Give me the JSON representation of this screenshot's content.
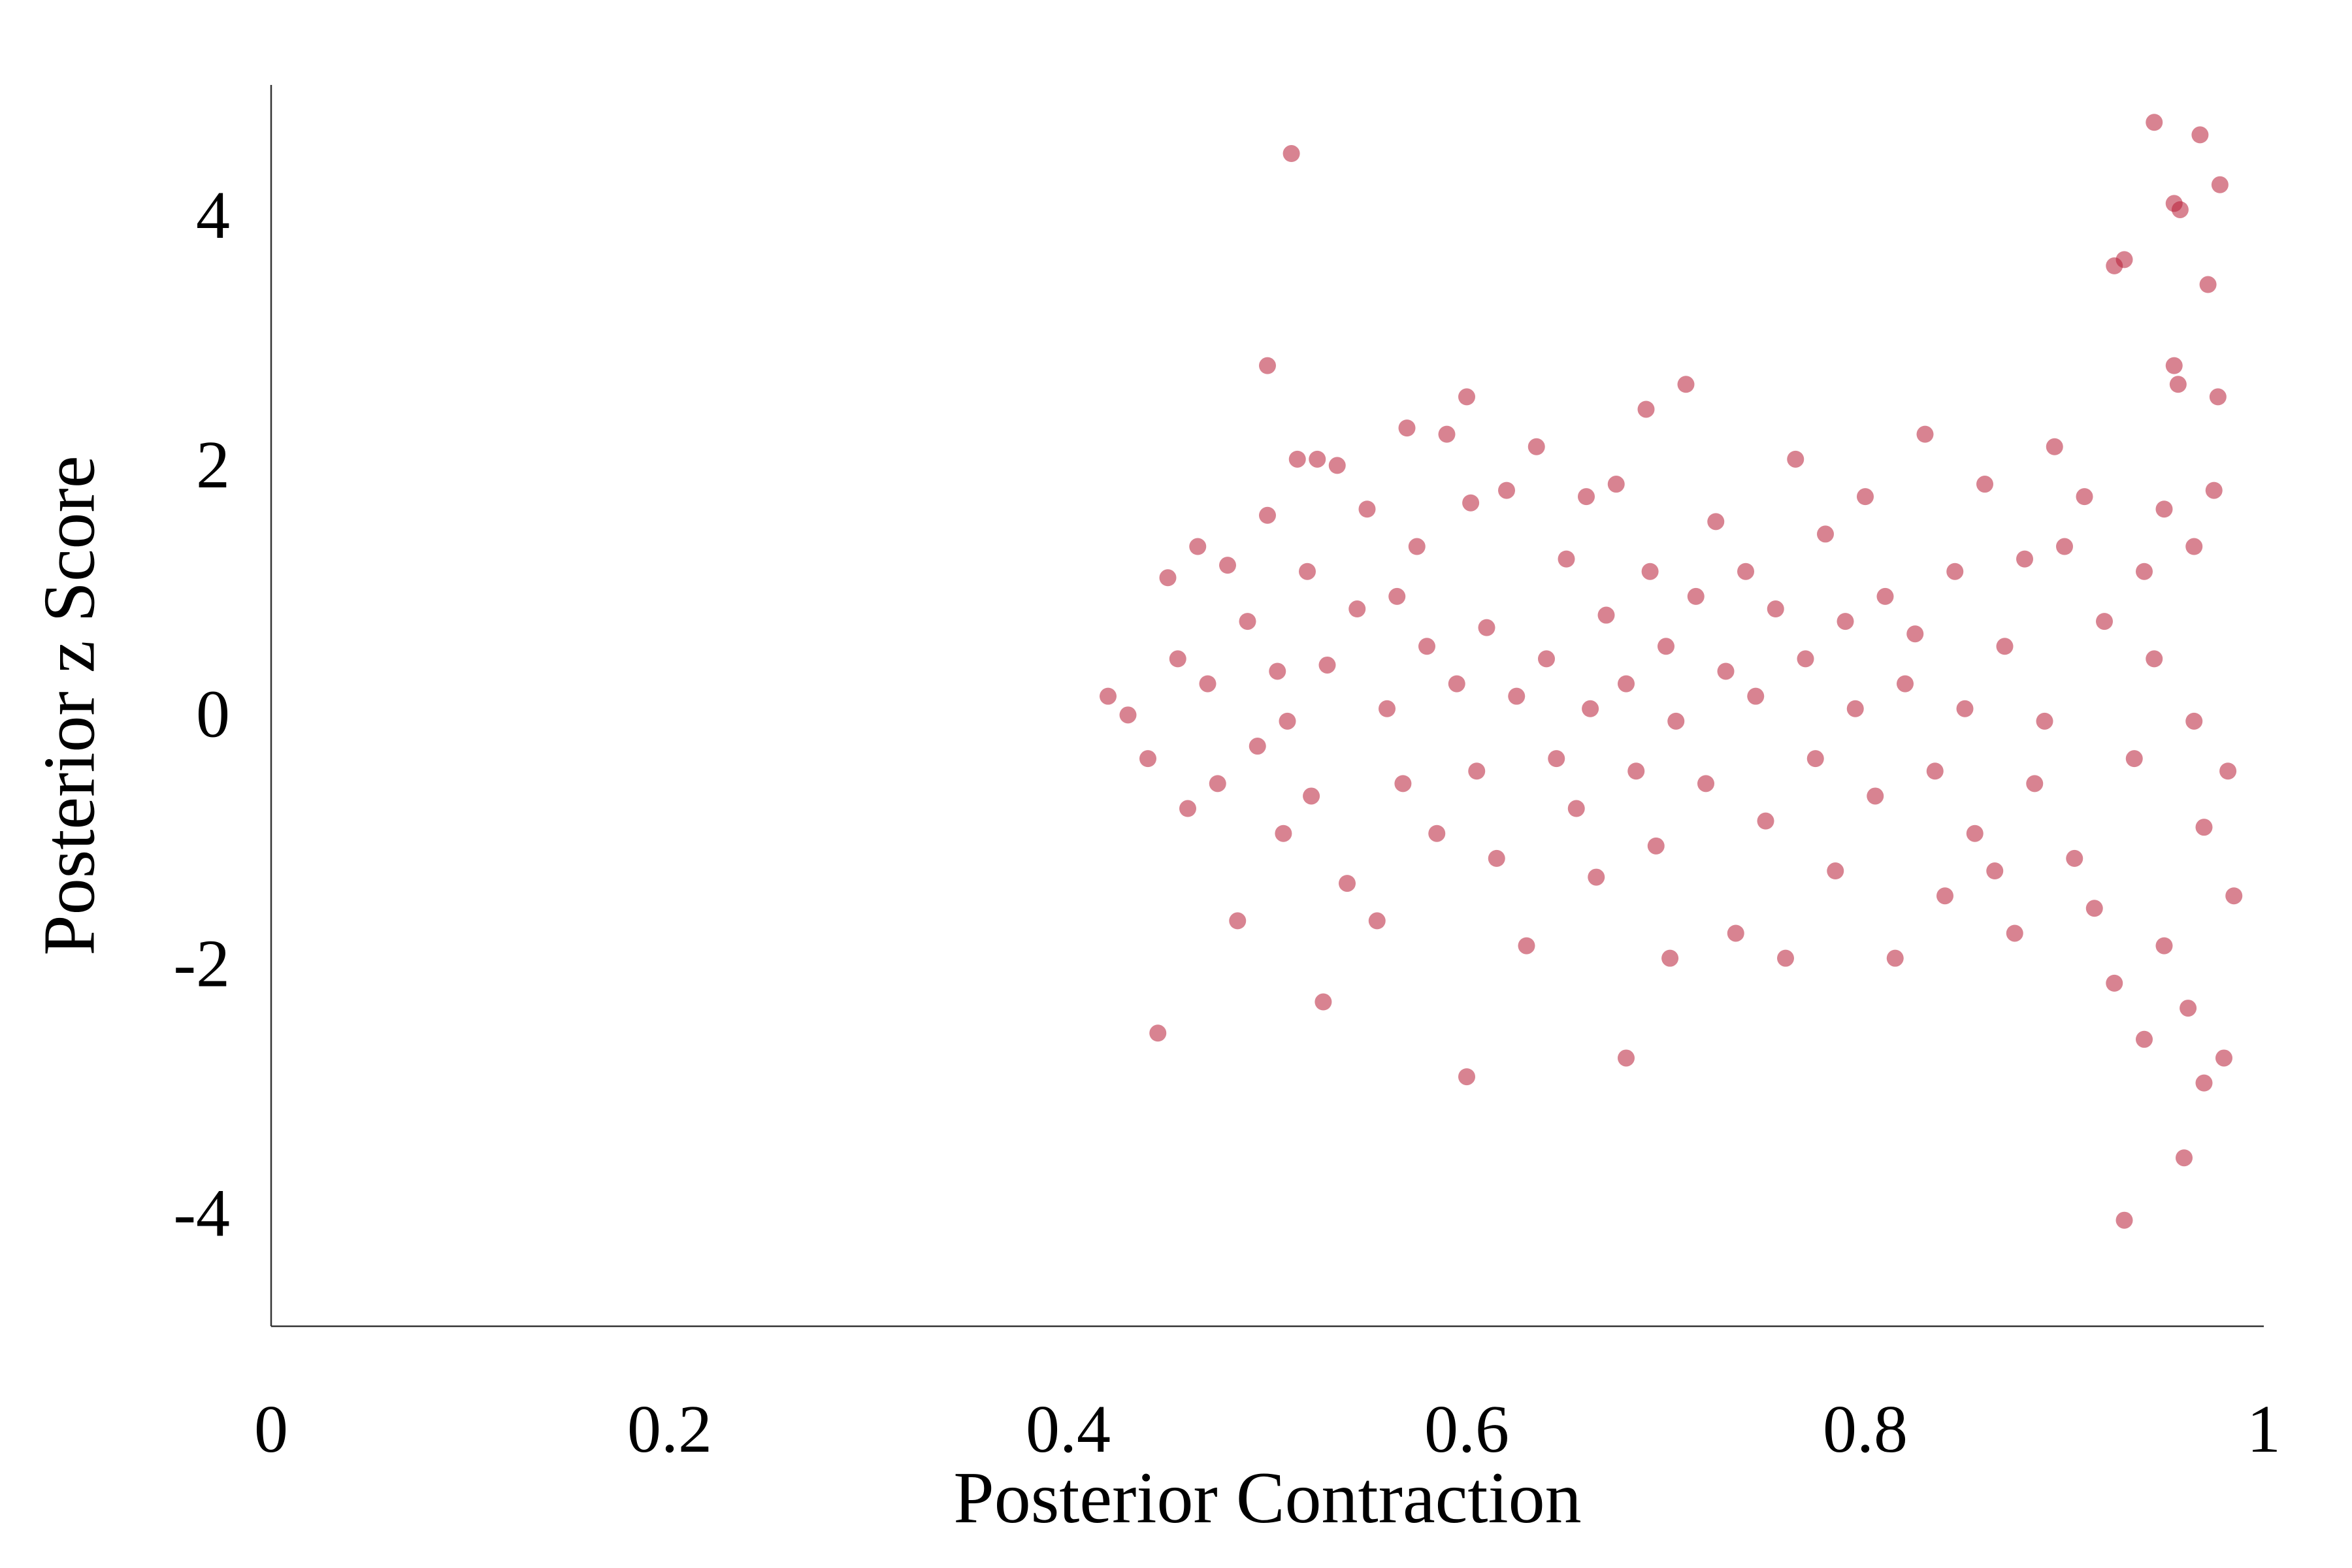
{
  "chart_data": {
    "type": "scatter",
    "title": "",
    "xlabel": "Posterior Contraction",
    "ylabel": "Posterior z Score",
    "xlim": [
      0,
      1
    ],
    "ylim": [
      -4.85,
      5.1
    ],
    "xticks": [
      0,
      0.2,
      0.4,
      0.6,
      0.8,
      1
    ],
    "xtick_labels": [
      "0",
      "0.2",
      "0.4",
      "0.6",
      "0.8",
      "1"
    ],
    "yticks": [
      -4,
      -2,
      0,
      2,
      4
    ],
    "ytick_labels": [
      "-4",
      "-2",
      "0",
      "2",
      "4"
    ],
    "grid": false,
    "legend": "none",
    "point_color": "#b81d36",
    "series": [
      {
        "points": [
          [
            0.42,
            0.2
          ],
          [
            0.43,
            0.05
          ],
          [
            0.44,
            -0.3
          ],
          [
            0.445,
            -2.5
          ],
          [
            0.45,
            1.15
          ],
          [
            0.455,
            0.5
          ],
          [
            0.46,
            -0.7
          ],
          [
            0.465,
            1.4
          ],
          [
            0.47,
            0.3
          ],
          [
            0.475,
            -0.5
          ],
          [
            0.48,
            1.25
          ],
          [
            0.485,
            -1.6
          ],
          [
            0.49,
            0.8
          ],
          [
            0.495,
            -0.2
          ],
          [
            0.5,
            2.85
          ],
          [
            0.5,
            1.65
          ],
          [
            0.505,
            0.4
          ],
          [
            0.508,
            -0.9
          ],
          [
            0.51,
            0.0
          ],
          [
            0.512,
            4.55
          ],
          [
            0.515,
            2.1
          ],
          [
            0.52,
            1.2
          ],
          [
            0.522,
            -0.6
          ],
          [
            0.525,
            2.1
          ],
          [
            0.528,
            -2.25
          ],
          [
            0.53,
            0.45
          ],
          [
            0.535,
            2.05
          ],
          [
            0.54,
            -1.3
          ],
          [
            0.545,
            0.9
          ],
          [
            0.55,
            1.7
          ],
          [
            0.555,
            -1.6
          ],
          [
            0.56,
            0.1
          ],
          [
            0.565,
            1.0
          ],
          [
            0.568,
            -0.5
          ],
          [
            0.57,
            2.35
          ],
          [
            0.575,
            1.4
          ],
          [
            0.58,
            0.6
          ],
          [
            0.585,
            -0.9
          ],
          [
            0.59,
            2.3
          ],
          [
            0.595,
            0.3
          ],
          [
            0.6,
            2.6
          ],
          [
            0.6,
            -2.85
          ],
          [
            0.602,
            1.75
          ],
          [
            0.605,
            -0.4
          ],
          [
            0.61,
            0.75
          ],
          [
            0.615,
            -1.1
          ],
          [
            0.62,
            1.85
          ],
          [
            0.625,
            0.2
          ],
          [
            0.63,
            -1.8
          ],
          [
            0.635,
            2.2
          ],
          [
            0.64,
            0.5
          ],
          [
            0.645,
            -0.3
          ],
          [
            0.65,
            1.3
          ],
          [
            0.655,
            -0.7
          ],
          [
            0.66,
            1.8
          ],
          [
            0.662,
            0.1
          ],
          [
            0.665,
            -1.25
          ],
          [
            0.67,
            0.85
          ],
          [
            0.675,
            1.9
          ],
          [
            0.68,
            -2.7
          ],
          [
            0.68,
            0.3
          ],
          [
            0.685,
            -0.4
          ],
          [
            0.69,
            2.5
          ],
          [
            0.692,
            1.2
          ],
          [
            0.695,
            -1.0
          ],
          [
            0.7,
            0.6
          ],
          [
            0.702,
            -1.9
          ],
          [
            0.705,
            0.0
          ],
          [
            0.71,
            2.7
          ],
          [
            0.715,
            1.0
          ],
          [
            0.72,
            -0.5
          ],
          [
            0.725,
            1.6
          ],
          [
            0.73,
            0.4
          ],
          [
            0.735,
            -1.7
          ],
          [
            0.74,
            1.2
          ],
          [
            0.745,
            0.2
          ],
          [
            0.75,
            -0.8
          ],
          [
            0.755,
            0.9
          ],
          [
            0.76,
            -1.9
          ],
          [
            0.765,
            2.1
          ],
          [
            0.77,
            0.5
          ],
          [
            0.775,
            -0.3
          ],
          [
            0.78,
            1.5
          ],
          [
            0.785,
            -1.2
          ],
          [
            0.79,
            0.8
          ],
          [
            0.795,
            0.1
          ],
          [
            0.8,
            1.8
          ],
          [
            0.805,
            -0.6
          ],
          [
            0.81,
            1.0
          ],
          [
            0.815,
            -1.9
          ],
          [
            0.82,
            0.3
          ],
          [
            0.825,
            0.7
          ],
          [
            0.83,
            2.3
          ],
          [
            0.835,
            -0.4
          ],
          [
            0.84,
            -1.4
          ],
          [
            0.845,
            1.2
          ],
          [
            0.85,
            0.1
          ],
          [
            0.855,
            -0.9
          ],
          [
            0.86,
            1.9
          ],
          [
            0.865,
            -1.2
          ],
          [
            0.87,
            0.6
          ],
          [
            0.875,
            -1.7
          ],
          [
            0.88,
            1.3
          ],
          [
            0.885,
            -0.5
          ],
          [
            0.89,
            0.0
          ],
          [
            0.895,
            2.2
          ],
          [
            0.9,
            1.4
          ],
          [
            0.905,
            -1.1
          ],
          [
            0.91,
            1.8
          ],
          [
            0.915,
            -1.5
          ],
          [
            0.92,
            0.8
          ],
          [
            0.925,
            3.65
          ],
          [
            0.925,
            -2.1
          ],
          [
            0.93,
            3.7
          ],
          [
            0.93,
            -4.0
          ],
          [
            0.935,
            -0.3
          ],
          [
            0.94,
            1.2
          ],
          [
            0.94,
            -2.55
          ],
          [
            0.945,
            4.8
          ],
          [
            0.95,
            -1.8
          ],
          [
            0.955,
            2.85
          ],
          [
            0.955,
            4.15
          ],
          [
            0.957,
            2.7
          ],
          [
            0.958,
            4.1
          ],
          [
            0.96,
            -3.5
          ],
          [
            0.962,
            -2.3
          ],
          [
            0.965,
            0.0
          ],
          [
            0.968,
            4.7
          ],
          [
            0.97,
            -2.9
          ],
          [
            0.972,
            3.5
          ],
          [
            0.975,
            1.85
          ],
          [
            0.977,
            2.6
          ],
          [
            0.978,
            4.3
          ],
          [
            0.98,
            -2.7
          ],
          [
            0.982,
            -0.4
          ],
          [
            0.985,
            -1.4
          ],
          [
            0.97,
            -0.85
          ],
          [
            0.965,
            1.4
          ],
          [
            0.95,
            1.7
          ],
          [
            0.945,
            0.5
          ]
        ]
      }
    ]
  }
}
